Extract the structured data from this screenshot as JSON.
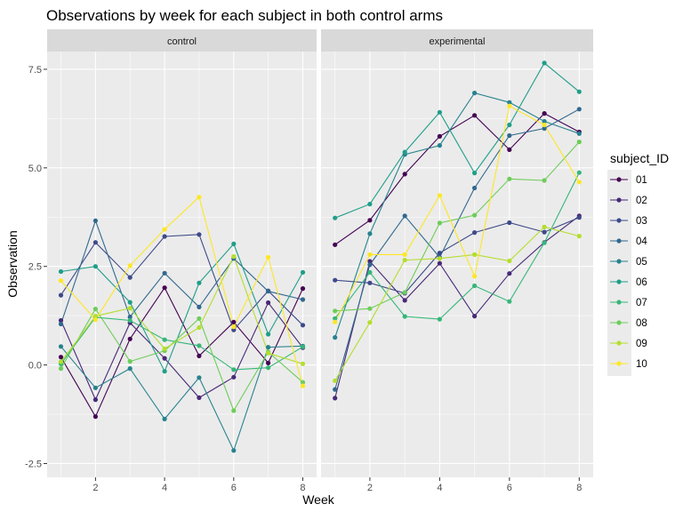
{
  "chart_data": {
    "type": "line",
    "title": "Observations by week for each subject in both control arms",
    "xlabel": "Week",
    "ylabel": "Observation",
    "x": [
      1,
      2,
      3,
      4,
      5,
      6,
      7,
      8
    ],
    "xlim": [
      0.6,
      8.4
    ],
    "ylim": [
      -2.85,
      7.95
    ],
    "xticks": [
      2,
      4,
      6,
      8
    ],
    "yticks": [
      -2.5,
      0.0,
      2.5,
      5.0,
      7.5
    ],
    "ytick_labels": [
      "-2.5",
      "0.0",
      "2.5",
      "5.0",
      "7.5"
    ],
    "legend_title": "subject_ID",
    "legend_placement": "right",
    "grid": true,
    "colors": [
      "#440154",
      "#482878",
      "#3E4A89",
      "#31688E",
      "#26828E",
      "#1F9E89",
      "#35B779",
      "#6DCD59",
      "#B4DE2C",
      "#FDE725"
    ],
    "panels": [
      {
        "label": "control",
        "series": [
          {
            "name": "01",
            "values": [
              0.2,
              -1.31,
              0.66,
              1.96,
              0.23,
              1.09,
              0.05,
              1.94
            ]
          },
          {
            "name": "02",
            "values": [
              1.13,
              -0.88,
              1.07,
              0.17,
              -0.83,
              -0.31,
              1.58,
              0.44
            ]
          },
          {
            "name": "03",
            "values": [
              1.77,
              3.11,
              2.22,
              3.26,
              3.31,
              0.89,
              1.88,
              1.01
            ]
          },
          {
            "name": "04",
            "values": [
              1.04,
              3.66,
              1.22,
              2.33,
              1.47,
              2.7,
              1.87,
              1.66
            ]
          },
          {
            "name": "05",
            "values": [
              0.47,
              -0.58,
              -0.09,
              -1.37,
              -0.32,
              -2.17,
              0.45,
              0.48
            ]
          },
          {
            "name": "06",
            "values": [
              2.37,
              2.5,
              1.59,
              -0.16,
              2.08,
              3.07,
              0.78,
              2.35
            ]
          },
          {
            "name": "07",
            "values": [
              0.03,
              1.21,
              1.13,
              0.64,
              0.49,
              -0.12,
              -0.07,
              0.46
            ]
          },
          {
            "name": "08",
            "values": [
              -0.09,
              1.42,
              0.09,
              0.36,
              1.18,
              -1.16,
              0.33,
              -0.44
            ]
          },
          {
            "name": "09",
            "values": [
              0.08,
              1.24,
              1.44,
              0.41,
              0.95,
              2.75,
              0.3,
              0.03
            ]
          },
          {
            "name": "10",
            "values": [
              2.14,
              1.15,
              2.52,
              3.44,
              4.26,
              0.97,
              2.73,
              -0.53
            ]
          }
        ]
      },
      {
        "label": "experimental",
        "series": [
          {
            "name": "01",
            "values": [
              3.05,
              3.67,
              4.84,
              5.8,
              6.33,
              5.46,
              6.38,
              5.91
            ]
          },
          {
            "name": "02",
            "values": [
              -0.84,
              2.63,
              1.64,
              2.58,
              1.24,
              2.32,
              3.11,
              3.78
            ]
          },
          {
            "name": "03",
            "values": [
              2.15,
              2.08,
              1.82,
              2.84,
              3.36,
              3.61,
              3.37,
              3.74
            ]
          },
          {
            "name": "04",
            "values": [
              -0.62,
              2.54,
              3.78,
              2.73,
              4.49,
              5.82,
              6.0,
              6.49
            ]
          },
          {
            "name": "05",
            "values": [
              0.7,
              3.33,
              5.34,
              5.57,
              6.9,
              6.66,
              6.18,
              5.87
            ]
          },
          {
            "name": "06",
            "values": [
              3.73,
              4.08,
              5.4,
              6.41,
              4.87,
              6.09,
              7.66,
              6.93
            ]
          },
          {
            "name": "07",
            "values": [
              1.18,
              2.35,
              1.23,
              1.16,
              2.01,
              1.61,
              3.1,
              4.88
            ]
          },
          {
            "name": "08",
            "values": [
              1.37,
              1.43,
              1.84,
              3.6,
              3.8,
              4.72,
              4.68,
              5.66
            ]
          },
          {
            "name": "09",
            "values": [
              -0.4,
              1.08,
              2.66,
              2.7,
              2.8,
              2.64,
              3.5,
              3.27
            ]
          },
          {
            "name": "10",
            "values": [
              1.09,
              2.8,
              2.8,
              4.3,
              2.25,
              6.57,
              6.09,
              4.64
            ]
          }
        ]
      }
    ]
  }
}
